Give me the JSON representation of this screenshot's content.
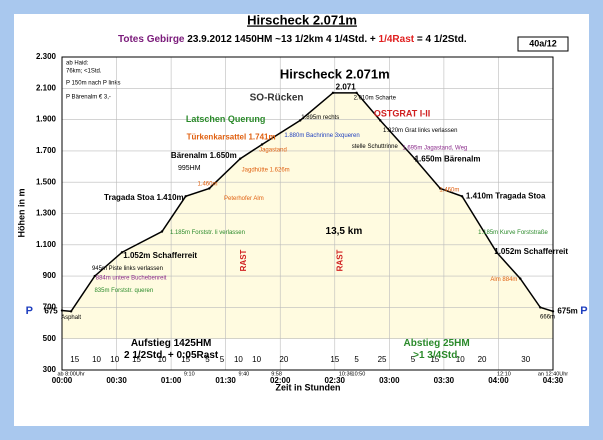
{
  "header": {
    "title": "Hirscheck 2.071m",
    "region": "Totes Gebirge",
    "details": "23.9.2012  1450HM   ~13 1/2km    4 1/4Std. +",
    "rest": "1/4Rast",
    "total": "= 4 1/2Std.",
    "code": "40a/12",
    "info": [
      "ab Haid:",
      "76km; <1Std.",
      "P 150m nach P links",
      "P Bärenalm € 3,-"
    ]
  },
  "chart_data": {
    "type": "area",
    "xlabel": "Zeit in Stunden",
    "ylabel": "Höhen in m",
    "color": "#000000",
    "fill": "#fffbe0",
    "x": [
      0,
      5,
      18,
      33,
      55,
      68,
      81,
      98,
      110,
      131,
      149,
      162,
      175,
      194,
      208,
      220,
      239,
      252,
      263,
      270
    ],
    "values": [
      680,
      675,
      900,
      1052,
      1185,
      1410,
      1460,
      1650,
      1741,
      1895,
      2071,
      2071,
      1895,
      1650,
      1460,
      1410,
      1052,
      884,
      700,
      675
    ],
    "xlim": [
      0,
      270
    ],
    "ylim": [
      300,
      2300
    ],
    "xticks": [
      {
        "value": 0,
        "label": "00:00"
      },
      {
        "value": 30,
        "label": "00:30"
      },
      {
        "value": 60,
        "label": "01:00"
      },
      {
        "value": 90,
        "label": "01:30"
      },
      {
        "value": 120,
        "label": "02:00"
      },
      {
        "value": 150,
        "label": "02:30"
      },
      {
        "value": 180,
        "label": "03:00"
      },
      {
        "value": 210,
        "label": "03:30"
      },
      {
        "value": 240,
        "label": "04:00"
      },
      {
        "value": 270,
        "label": "04:30"
      }
    ],
    "yticks": [
      {
        "value": 300,
        "label": "300"
      },
      {
        "value": 500,
        "label": "500"
      },
      {
        "value": 700,
        "label": "700"
      },
      {
        "value": 900,
        "label": "900"
      },
      {
        "value": 1100,
        "label": "1.100"
      },
      {
        "value": 1300,
        "label": "1.300"
      },
      {
        "value": 1500,
        "label": "1.500"
      },
      {
        "value": 1700,
        "label": "1.700"
      },
      {
        "value": 1900,
        "label": "1.900"
      },
      {
        "value": 2100,
        "label": "2.100"
      },
      {
        "value": 2300,
        "label": "2.300"
      }
    ],
    "grid": true,
    "time_labels": [
      {
        "text": "ab 8:00Uhr",
        "x": 5
      },
      {
        "text": "9:10",
        "x": 70
      },
      {
        "text": "9:40",
        "x": 100
      },
      {
        "text": "9:58",
        "x": 118
      },
      {
        "text": "10:36",
        "x": 156
      },
      {
        "text": "10:50",
        "x": 163
      },
      {
        "text": "12:10",
        "x": 243
      },
      {
        "text": "an 12:40Uhr",
        "x": 270
      }
    ],
    "legs": [
      {
        "text": "15",
        "x": 7
      },
      {
        "text": "10",
        "x": 19
      },
      {
        "text": "10",
        "x": 29
      },
      {
        "text": "15",
        "x": 41
      },
      {
        "text": "10",
        "x": 55
      },
      {
        "text": "15",
        "x": 68
      },
      {
        "text": "5",
        "x": 80
      },
      {
        "text": "5",
        "x": 88
      },
      {
        "text": "10",
        "x": 97
      },
      {
        "text": "10",
        "x": 107
      },
      {
        "text": "20",
        "x": 122
      },
      {
        "text": "15",
        "x": 150
      },
      {
        "text": "5",
        "x": 162
      },
      {
        "text": "25",
        "x": 176
      },
      {
        "text": "5",
        "x": 193
      },
      {
        "text": "15",
        "x": 205
      },
      {
        "text": "10",
        "x": 219
      },
      {
        "text": "20",
        "x": 231
      },
      {
        "text": "30",
        "x": 255
      }
    ],
    "rast": [
      {
        "text": "RAST",
        "x": 100,
        "y": 1000
      },
      {
        "text": "RAST",
        "x": 153,
        "y": 1000
      }
    ],
    "annotations": [
      {
        "text": "Hirscheck 2.071m",
        "x": 150,
        "y": 2185,
        "color": "#000000",
        "size": 13
      },
      {
        "text": "2.071",
        "x": 156,
        "y": 2105,
        "color": "#000000",
        "size": 8
      },
      {
        "text": "2.010m Scharte",
        "x": 172,
        "y": 2040,
        "color": "#000000",
        "size": 6
      },
      {
        "text": "SO-Rücken",
        "x": 118,
        "y": 2040,
        "color": "#333333",
        "size": 10
      },
      {
        "text": "OSTGRAT I-II",
        "x": 187,
        "y": 1935,
        "color": "#d02020",
        "size": 9
      },
      {
        "text": "Latschen Querung",
        "x": 90,
        "y": 1900,
        "color": "#2a8a2a",
        "size": 9
      },
      {
        "text": "1.895m rechts",
        "x": 142,
        "y": 1915,
        "color": "#000000",
        "size": 6
      },
      {
        "text": "1.880m Bachrinne 3xqueren",
        "x": 143,
        "y": 1800,
        "color": "#1f3fbf",
        "size": 6
      },
      {
        "text": "1.820m Grat links verlassen",
        "x": 197,
        "y": 1830,
        "color": "#000000",
        "size": 6
      },
      {
        "text": "stelle Schuttrinne",
        "x": 172,
        "y": 1730,
        "color": "#000000",
        "size": 6
      },
      {
        "text": "1.695m Jagastand, Weg",
        "x": 205,
        "y": 1720,
        "color": "#8a2a8a",
        "size": 6
      },
      {
        "text": "1.650m Bärenalm",
        "x": 212,
        "y": 1645,
        "color": "#000000",
        "size": 8
      },
      {
        "text": "Türkenkarsattel 1.741m",
        "x": 93,
        "y": 1785,
        "color": "#e06010",
        "size": 8
      },
      {
        "text": "Jagastand",
        "x": 116,
        "y": 1705,
        "color": "#e06010",
        "size": 6
      },
      {
        "text": "Bärenalm 1.650m",
        "x": 78,
        "y": 1668,
        "color": "#000000",
        "size": 8
      },
      {
        "text": "995HM",
        "x": 70,
        "y": 1590,
        "color": "#000000",
        "size": 7
      },
      {
        "text": "Jagdhütte 1.626m",
        "x": 112,
        "y": 1580,
        "color": "#e06010",
        "size": 6
      },
      {
        "text": "1.460m",
        "x": 80,
        "y": 1490,
        "color": "#e06010",
        "size": 6
      },
      {
        "text": "Peterhofer Alm",
        "x": 100,
        "y": 1395,
        "color": "#e06010",
        "size": 6
      },
      {
        "text": "Tragada Stoa 1.410m",
        "x": 45,
        "y": 1400,
        "color": "#000000",
        "size": 8
      },
      {
        "text": "1.460m",
        "x": 213,
        "y": 1450,
        "color": "#e06010",
        "size": 6
      },
      {
        "text": "1.410m Tragada Stoa",
        "x": 244,
        "y": 1410,
        "color": "#000000",
        "size": 8
      },
      {
        "text": "1.185m Forststr. li verlassen",
        "x": 80,
        "y": 1180,
        "color": "#2a8a2a",
        "size": 6
      },
      {
        "text": "1.185m Kurve Forststraße",
        "x": 248,
        "y": 1180,
        "color": "#2a8a2a",
        "size": 6
      },
      {
        "text": "13,5 km",
        "x": 155,
        "y": 1185,
        "color": "#000000",
        "size": 10
      },
      {
        "text": "1.052m  Schafferreit",
        "x": 54,
        "y": 1030,
        "color": "#000000",
        "size": 8
      },
      {
        "text": "1.052m  Schafferreit",
        "x": 258,
        "y": 1055,
        "color": "#000000",
        "size": 8
      },
      {
        "text": "945m Piste links verlassen",
        "x": 36,
        "y": 948,
        "color": "#000000",
        "size": 6
      },
      {
        "text": "884m untere Buchebenreit",
        "x": 38,
        "y": 888,
        "color": "#8a2a8a",
        "size": 6
      },
      {
        "text": "835m Forststr. queren",
        "x": 34,
        "y": 810,
        "color": "#2a8a2a",
        "size": 6
      },
      {
        "text": "Alm 884m",
        "x": 243,
        "y": 880,
        "color": "#e06010",
        "size": 6
      },
      {
        "text": "Asphalt",
        "x": 5,
        "y": 635,
        "color": "#000000",
        "size": 6
      },
      {
        "text": "666m",
        "x": 267,
        "y": 640,
        "color": "#000000",
        "size": 6
      },
      {
        "text": "675m",
        "x": 278,
        "y": 675,
        "color": "#000000",
        "size": 8
      },
      {
        "text": "675",
        "x": -6,
        "y": 675,
        "color": "#000000",
        "size": 8
      },
      {
        "text": "P",
        "x": -18,
        "y": 675,
        "color": "#1f3fbf",
        "size": 11
      },
      {
        "text": "P",
        "x": 287,
        "y": 675,
        "color": "#1f3fbf",
        "size": 11
      },
      {
        "text": "Aufstieg 1425HM",
        "x": 60,
        "y": 470,
        "color": "#000000",
        "size": 10
      },
      {
        "text": "2 1/2Std. + 0:05Rast",
        "x": 60,
        "y": 395,
        "color": "#000000",
        "size": 10
      },
      {
        "text": "Abstieg 25HM",
        "x": 206,
        "y": 470,
        "color": "#2a8a2a",
        "size": 10
      },
      {
        "text": ">1 3/4Std.",
        "x": 206,
        "y": 395,
        "color": "#2a8a2a",
        "size": 10
      }
    ]
  }
}
